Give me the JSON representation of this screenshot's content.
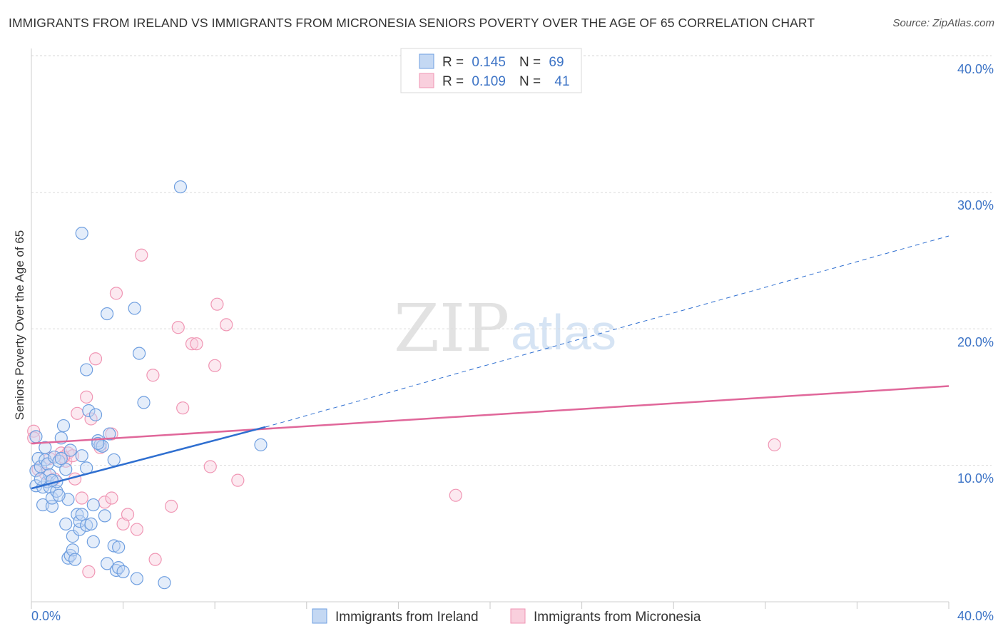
{
  "title": "IMMIGRANTS FROM IRELAND VS IMMIGRANTS FROM MICRONESIA SENIORS POVERTY OVER THE AGE OF 65 CORRELATION CHART",
  "source": "Source: ZipAtlas.com",
  "watermark": {
    "zip": "ZIP",
    "atlas": "atlas"
  },
  "legend": {
    "r_label": "R =",
    "n_label": "N =",
    "rows": [
      {
        "r": "0.145",
        "n": "69"
      },
      {
        "r": "0.109",
        "n": "41"
      }
    ]
  },
  "chart_data": {
    "type": "scatter",
    "title": "IMMIGRANTS FROM IRELAND VS IMMIGRANTS FROM MICRONESIA SENIORS POVERTY OVER THE AGE OF 65 CORRELATION CHART",
    "xlabel": "",
    "ylabel": "Seniors Poverty Over the Age of 65",
    "xlim": [
      0,
      40
    ],
    "ylim": [
      0,
      42
    ],
    "x_tick_labels": [
      "0.0%",
      "40.0%"
    ],
    "y_ticks": [
      10,
      20,
      30,
      40
    ],
    "y_tick_labels": [
      "10.0%",
      "20.0%",
      "30.0%",
      "40.0%"
    ],
    "grid": true,
    "legend_position": "top-center",
    "colors": {
      "ireland": "#6f9fe0",
      "micronesia": "#f096b4",
      "ireland_line": "#2f6fd0",
      "micronesia_line": "#e0679a"
    },
    "series": [
      {
        "name": "Immigrants from Ireland",
        "r": 0.145,
        "n": 69,
        "trend": {
          "x0": 0,
          "y0": 8.3,
          "x1": 10.2,
          "y1": 12.8,
          "x_dash_end": 40,
          "y_dash_end": 26.8
        },
        "points": [
          [
            0.2,
            12.1
          ],
          [
            0.2,
            9.6
          ],
          [
            0.2,
            8.5
          ],
          [
            0.3,
            10.5
          ],
          [
            0.4,
            9.9
          ],
          [
            0.5,
            8.4
          ],
          [
            0.5,
            7.1
          ],
          [
            0.6,
            10.4
          ],
          [
            0.6,
            11.3
          ],
          [
            0.7,
            8.8
          ],
          [
            0.7,
            10.1
          ],
          [
            0.8,
            9.3
          ],
          [
            0.8,
            8.4
          ],
          [
            0.9,
            7.0
          ],
          [
            0.9,
            7.6
          ],
          [
            1.0,
            10.6
          ],
          [
            1.1,
            8.1
          ],
          [
            1.1,
            8.8
          ],
          [
            1.2,
            10.3
          ],
          [
            1.3,
            12.0
          ],
          [
            1.4,
            12.9
          ],
          [
            1.5,
            9.7
          ],
          [
            1.5,
            5.7
          ],
          [
            1.6,
            7.5
          ],
          [
            1.6,
            3.2
          ],
          [
            1.7,
            3.4
          ],
          [
            1.7,
            11.1
          ],
          [
            1.8,
            3.8
          ],
          [
            1.8,
            4.8
          ],
          [
            1.9,
            3.1
          ],
          [
            2.0,
            6.4
          ],
          [
            2.1,
            5.3
          ],
          [
            2.1,
            5.9
          ],
          [
            2.2,
            6.4
          ],
          [
            2.2,
            10.7
          ],
          [
            2.4,
            5.6
          ],
          [
            2.4,
            9.8
          ],
          [
            2.4,
            17.0
          ],
          [
            2.5,
            14.0
          ],
          [
            2.6,
            5.7
          ],
          [
            2.7,
            4.4
          ],
          [
            2.7,
            7.1
          ],
          [
            2.8,
            13.7
          ],
          [
            2.9,
            11.8
          ],
          [
            3.0,
            11.5
          ],
          [
            3.1,
            11.4
          ],
          [
            3.2,
            6.3
          ],
          [
            3.3,
            2.8
          ],
          [
            3.3,
            21.1
          ],
          [
            3.4,
            12.3
          ],
          [
            3.6,
            4.1
          ],
          [
            3.6,
            10.4
          ],
          [
            3.7,
            2.3
          ],
          [
            3.8,
            2.5
          ],
          [
            3.8,
            4.0
          ],
          [
            4.0,
            2.2
          ],
          [
            4.5,
            21.5
          ],
          [
            4.7,
            18.2
          ],
          [
            4.9,
            14.6
          ],
          [
            4.6,
            1.7
          ],
          [
            5.8,
            1.4
          ],
          [
            6.5,
            30.4
          ],
          [
            10.0,
            11.5
          ],
          [
            2.2,
            27.0
          ],
          [
            0.4,
            9.0
          ],
          [
            0.9,
            8.9
          ],
          [
            1.2,
            7.8
          ],
          [
            2.9,
            11.6
          ],
          [
            1.3,
            10.5
          ]
        ]
      },
      {
        "name": "Immigrants from Micronesia",
        "r": 0.109,
        "n": 41,
        "trend": {
          "x0": 0,
          "y0": 11.6,
          "x1": 40,
          "y1": 15.8
        },
        "points": [
          [
            0.1,
            12.5
          ],
          [
            0.1,
            12.0
          ],
          [
            0.3,
            9.7
          ],
          [
            0.6,
            9.4
          ],
          [
            0.8,
            10.5
          ],
          [
            1.0,
            9.0
          ],
          [
            1.3,
            10.9
          ],
          [
            1.5,
            10.3
          ],
          [
            1.6,
            10.9
          ],
          [
            1.8,
            10.7
          ],
          [
            1.9,
            9.0
          ],
          [
            2.0,
            13.8
          ],
          [
            2.2,
            7.6
          ],
          [
            2.4,
            15.0
          ],
          [
            2.5,
            2.2
          ],
          [
            2.6,
            13.4
          ],
          [
            2.8,
            17.8
          ],
          [
            3.0,
            11.3
          ],
          [
            3.2,
            7.3
          ],
          [
            3.5,
            12.3
          ],
          [
            3.5,
            7.6
          ],
          [
            3.7,
            22.6
          ],
          [
            4.0,
            5.7
          ],
          [
            4.2,
            6.4
          ],
          [
            4.6,
            5.3
          ],
          [
            4.8,
            25.4
          ],
          [
            5.3,
            16.6
          ],
          [
            5.4,
            3.1
          ],
          [
            6.1,
            7.0
          ],
          [
            6.4,
            20.1
          ],
          [
            6.6,
            14.2
          ],
          [
            7.0,
            18.9
          ],
          [
            7.2,
            18.9
          ],
          [
            7.8,
            9.9
          ],
          [
            8.0,
            17.3
          ],
          [
            8.1,
            21.8
          ],
          [
            8.5,
            20.3
          ],
          [
            9.0,
            8.9
          ],
          [
            18.5,
            7.8
          ],
          [
            32.4,
            11.5
          ],
          [
            1.4,
            10.6
          ]
        ]
      }
    ]
  },
  "bottom_legend": [
    {
      "label": "Immigrants from Ireland"
    },
    {
      "label": "Immigrants from Micronesia"
    }
  ]
}
